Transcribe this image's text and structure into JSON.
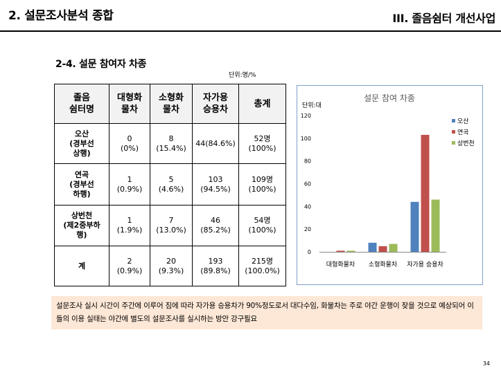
{
  "header": {
    "left_title": "2. 설문조사분석 종합",
    "right_title": "III. 졸음쉼터 개선사업"
  },
  "section_title": "2-4. 설문 참여자 차종",
  "unit_label": "단위:명/%",
  "table": {
    "headers": [
      "졸음\n쉼터명",
      "대형화\n물차",
      "소형화\n물차",
      "자가용\n승용차",
      "총계"
    ],
    "rows": [
      {
        "name": "오산\n(경부선\n상행)",
        "cells": [
          "0\n(0%)",
          "8\n(15.4%)",
          "44(84.6%)",
          "52명\n(100%)"
        ]
      },
      {
        "name": "연곡\n(경부선\n하행)",
        "cells": [
          "1\n(0.9%)",
          "5\n(4.6%)",
          "103\n(94.5%)",
          "109명\n(100%)"
        ]
      },
      {
        "name": "상번천\n(제2중부하\n행)",
        "cells": [
          "1\n(1.9%)",
          "7\n(13.0%)",
          "46\n(85.2%)",
          "54명\n(100%)"
        ]
      },
      {
        "name": "계",
        "cells": [
          "2\n(0.9%)",
          "20\n(9.3%)",
          "193\n(89.8%)",
          "215명\n(100.0%)"
        ]
      }
    ]
  },
  "chart_data": {
    "type": "bar",
    "title": "설문 참여 차종",
    "ylabel": "단위:대",
    "categories": [
      "대형화물차",
      "소형화물차",
      "자가용 승용차"
    ],
    "series": [
      {
        "name": "오산",
        "values": [
          0,
          8,
          44
        ],
        "color": "#4f81bd"
      },
      {
        "name": "연곡",
        "values": [
          1,
          5,
          103
        ],
        "color": "#c0504d"
      },
      {
        "name": "상번천",
        "values": [
          1,
          7,
          46
        ],
        "color": "#9bbb59"
      }
    ],
    "ylim": [
      0,
      120
    ],
    "yticks": [
      0,
      20,
      40,
      60,
      80,
      100,
      120
    ],
    "legend_position": "right"
  },
  "note": "설문조사 실시 시간이 주간에 이루어 짐에 따라 자가용 승용차가 90%정도로서 대다수임, 화물차는 주로 야간 운행이 잦을 것으로 예상되어 이들의 이용 실태는 야간에 별도의 설문조사를 실시하는 방안 강구필요",
  "page_number": "34"
}
